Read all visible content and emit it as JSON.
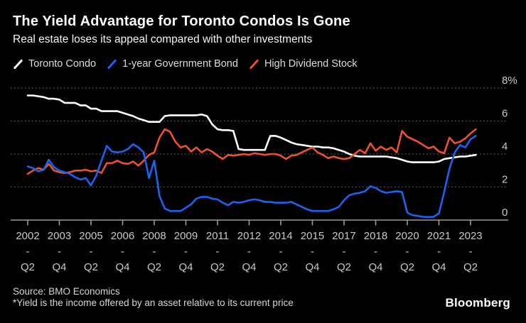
{
  "header": {
    "title": "The Yield Advantage for Toronto Condos Is Gone",
    "subtitle": "Real estate loses its appeal compared with other investments"
  },
  "legend": [
    {
      "label": "Toronto Condo",
      "color": "#ffffff"
    },
    {
      "label": "1-year Government Bond",
      "color": "#1c63f0"
    },
    {
      "label": "High Dividend Stock",
      "color": "#ec5328"
    }
  ],
  "colors": {
    "background": "#000000",
    "grid": "#5f5f5f",
    "axis": "#9a9a9a",
    "tick_text": "#c9c9c9"
  },
  "chart_data": {
    "type": "line",
    "title": "The Yield Advantage for Toronto Condos Is Gone",
    "subtitle": "Real estate loses its appeal compared with other investments",
    "x_unit": "quarterly",
    "x_start": "2002 Q2",
    "x_end": "2023 Q3",
    "ylim": [
      0,
      8
    ],
    "y_ticks": [
      {
        "value": 8,
        "label": "8%"
      },
      {
        "value": 6,
        "label": "6"
      },
      {
        "value": 4,
        "label": "4"
      },
      {
        "value": 2,
        "label": "2"
      },
      {
        "value": 0,
        "label": "0"
      }
    ],
    "x_tick_labels": [
      {
        "year": "2002",
        "dash": "-",
        "quarter": "Q2"
      },
      {
        "year": "2003",
        "dash": "-",
        "quarter": "Q4"
      },
      {
        "year": "2005",
        "dash": "-",
        "quarter": "Q2"
      },
      {
        "year": "2006",
        "dash": "-",
        "quarter": "Q4"
      },
      {
        "year": "2008",
        "dash": "-",
        "quarter": "Q2"
      },
      {
        "year": "2009",
        "dash": "-",
        "quarter": "Q4"
      },
      {
        "year": "2011",
        "dash": "-",
        "quarter": "Q2"
      },
      {
        "year": "2012",
        "dash": "-",
        "quarter": "Q4"
      },
      {
        "year": "2014",
        "dash": "-",
        "quarter": "Q2"
      },
      {
        "year": "2015",
        "dash": "-",
        "quarter": "Q4"
      },
      {
        "year": "2017",
        "dash": "-",
        "quarter": "Q2"
      },
      {
        "year": "2018",
        "dash": "-",
        "quarter": "Q4"
      },
      {
        "year": "2020",
        "dash": "-",
        "quarter": "Q2"
      },
      {
        "year": "2021",
        "dash": "-",
        "quarter": "Q4"
      },
      {
        "year": "2023",
        "dash": "-",
        "quarter": "Q2"
      }
    ],
    "grid": "dotted horizontal gridlines, legend top-left, y axis labels right",
    "series": [
      {
        "name": "Toronto Condo",
        "color": "#ffffff",
        "values": [
          7.55,
          7.55,
          7.5,
          7.45,
          7.35,
          7.35,
          7.3,
          7.1,
          7.1,
          7.1,
          6.95,
          6.95,
          6.75,
          6.75,
          6.6,
          6.6,
          6.6,
          6.6,
          6.5,
          6.4,
          6.3,
          6.15,
          6.05,
          5.95,
          5.95,
          5.95,
          6.3,
          6.35,
          6.35,
          6.35,
          6.35,
          6.35,
          6.35,
          6.4,
          6.3,
          5.8,
          5.5,
          5.45,
          5.45,
          5.4,
          4.3,
          4.25,
          4.25,
          4.25,
          4.25,
          4.25,
          5.1,
          5.1,
          5.0,
          4.85,
          4.7,
          4.6,
          4.55,
          4.5,
          4.45,
          4.45,
          4.4,
          4.4,
          4.35,
          4.25,
          4.15,
          4.0,
          3.9,
          3.85,
          3.85,
          3.85,
          3.85,
          3.85,
          3.85,
          3.8,
          3.75,
          3.65,
          3.55,
          3.5,
          3.5,
          3.5,
          3.5,
          3.5,
          3.55,
          3.7,
          3.75,
          3.8,
          3.85,
          3.85,
          3.9,
          3.95
        ]
      },
      {
        "name": "1-year Government Bond",
        "color": "#1c63f0",
        "values": [
          3.25,
          3.15,
          2.95,
          3.05,
          3.65,
          3.2,
          3.0,
          2.9,
          2.8,
          2.6,
          2.45,
          2.55,
          2.1,
          2.7,
          3.6,
          4.5,
          4.15,
          4.1,
          4.15,
          4.3,
          4.6,
          4.4,
          4.1,
          2.55,
          3.6,
          1.45,
          0.7,
          0.55,
          0.55,
          0.55,
          0.75,
          0.95,
          1.3,
          1.4,
          1.4,
          1.3,
          1.25,
          1.05,
          0.9,
          1.1,
          1.05,
          1.1,
          1.2,
          1.25,
          1.2,
          1.1,
          1.1,
          1.05,
          1.05,
          1.05,
          1.1,
          0.95,
          0.8,
          0.65,
          0.55,
          0.55,
          0.55,
          0.55,
          0.65,
          0.8,
          1.2,
          1.5,
          1.6,
          1.65,
          1.75,
          2.05,
          1.95,
          1.75,
          1.65,
          1.7,
          1.75,
          1.7,
          0.45,
          0.3,
          0.25,
          0.2,
          0.18,
          0.2,
          0.4,
          1.7,
          3.1,
          4.1,
          4.55,
          4.4,
          4.9,
          5.1
        ]
      },
      {
        "name": "High Dividend Stock",
        "color": "#ec5328",
        "values": [
          2.8,
          3.0,
          3.15,
          3.05,
          3.4,
          3.0,
          2.9,
          2.85,
          2.9,
          3.0,
          3.0,
          3.05,
          2.95,
          3.0,
          2.85,
          3.45,
          3.45,
          3.6,
          3.45,
          3.4,
          3.55,
          3.3,
          3.6,
          3.95,
          4.1,
          5.0,
          5.5,
          5.35,
          4.75,
          4.4,
          4.5,
          4.15,
          4.4,
          4.1,
          4.3,
          4.15,
          3.9,
          3.7,
          3.95,
          3.9,
          3.95,
          4.0,
          3.95,
          4.05,
          4.0,
          3.95,
          4.0,
          4.0,
          3.9,
          3.7,
          3.9,
          3.95,
          4.1,
          4.25,
          4.4,
          4.1,
          3.95,
          3.75,
          3.85,
          3.75,
          3.7,
          3.75,
          4.0,
          4.25,
          4.05,
          4.65,
          4.2,
          4.45,
          4.25,
          4.4,
          4.1,
          5.4,
          5.05,
          4.9,
          4.75,
          4.55,
          4.35,
          4.45,
          4.15,
          4.05,
          5.0,
          4.65,
          4.75,
          4.95,
          5.25,
          5.5
        ]
      }
    ]
  },
  "footer": {
    "source": "Source: BMO Economics",
    "note": "*Yield is the income offered by an asset relative to its current price",
    "logo": "Bloomberg"
  }
}
